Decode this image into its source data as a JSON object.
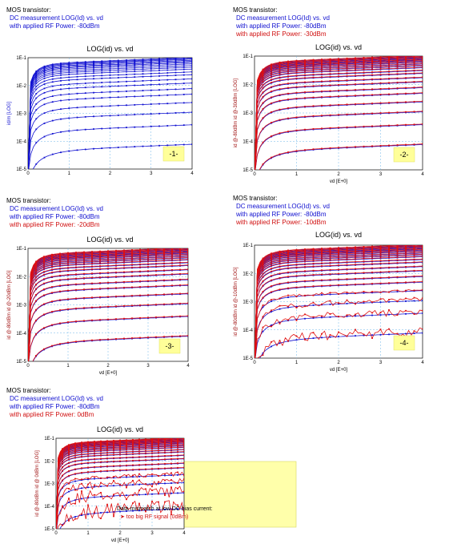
{
  "colors": {
    "blue": "#1010d0",
    "red": "#e01010",
    "grid": "#6fb6e8",
    "tag": "#ffff99",
    "highlight": "#ffffaa"
  },
  "chart_data": [
    {
      "type": "line",
      "id": "p1",
      "header": [
        "MOS transistor:",
        "DC measurement  LOG(Id) vs. vd",
        "with applied RF Power:    -80dBm"
      ],
      "header_colors": [
        "t",
        "b",
        "b"
      ],
      "title": "LOG(id) vs. vd",
      "xlabel": "",
      "ylabel": "id/m   [LOG]",
      "yticks": [
        "1E-1",
        "1E-2",
        "1E-3",
        "1E-4",
        "1E-5"
      ],
      "xticks": [
        "0",
        "1",
        "2",
        "3",
        "4"
      ],
      "xlim": [
        0,
        4
      ],
      "ylim_log10": [
        -5,
        -1
      ],
      "tag": "-1-",
      "series": [
        {
          "color": "blue",
          "noise": 0
        }
      ]
    },
    {
      "type": "line",
      "id": "p2",
      "header": [
        "MOS transistor:",
        "DC measurement  LOG(Id) vs. vd",
        "with applied RF Power:    -80dBm",
        "with applied RF Power:    -30dBm"
      ],
      "header_colors": [
        "t",
        "b",
        "b",
        "r"
      ],
      "title": "LOG(id) vs. vd",
      "xlabel": "vd  [E+0]",
      "ylabel": "id @-80dBm  id @-30dBm  [LOG]",
      "yticks": [
        "1E-1",
        "1E-2",
        "1E-3",
        "1E-4",
        "1E-5"
      ],
      "xticks": [
        "0",
        "1",
        "2",
        "3",
        "4"
      ],
      "xlim": [
        0,
        4
      ],
      "ylim_log10": [
        -5,
        -1
      ],
      "tag": "-2-",
      "series": [
        {
          "color": "blue",
          "noise": 0
        },
        {
          "color": "red",
          "noise": 0
        }
      ]
    },
    {
      "type": "line",
      "id": "p3",
      "header": [
        "MOS transistor:",
        "DC measurement  LOG(Id) vs. vd",
        "with applied RF Power:    -80dBm",
        "with applied RF Power:    -20dBm"
      ],
      "header_colors": [
        "t",
        "b",
        "b",
        "r"
      ],
      "title": "LOG(id) vs. vd",
      "xlabel": "vd  [E+0]",
      "ylabel": "id @-80dBm  id @-20dBm  [LOG]",
      "yticks": [
        "1E-1",
        "1E-2",
        "1E-3",
        "1E-4",
        "1E-5"
      ],
      "xticks": [
        "0",
        "1",
        "2",
        "3",
        "4"
      ],
      "xlim": [
        0,
        4
      ],
      "ylim_log10": [
        -5,
        -1
      ],
      "tag": "-3-",
      "series": [
        {
          "color": "blue",
          "noise": 0
        },
        {
          "color": "red",
          "noise": 0
        }
      ]
    },
    {
      "type": "line",
      "id": "p4",
      "header": [
        "MOS transistor:",
        "DC measurement  LOG(Id) vs. vd",
        "with applied RF Power:    -80dBm",
        "with applied RF Power:    -10dBm"
      ],
      "header_colors": [
        "t",
        "b",
        "b",
        "r"
      ],
      "title": "LOG(id) vs. vd",
      "xlabel": "vd  [E+0]",
      "ylabel": "id @-80dBm  id @-10dBm  [LOG]",
      "yticks": [
        "1E-1",
        "1E-2",
        "1E-3",
        "1E-4",
        "1E-5"
      ],
      "xticks": [
        "0",
        "1",
        "2",
        "3",
        "4"
      ],
      "xlim": [
        0,
        4
      ],
      "ylim_log10": [
        -5,
        -1
      ],
      "tag": "-4-",
      "series": [
        {
          "color": "blue",
          "noise": 0
        },
        {
          "color": "red",
          "noise": 1
        }
      ]
    },
    {
      "type": "line",
      "id": "p5",
      "header": [
        "MOS transistor:",
        "DC measurement  LOG(Id) vs. vd",
        "with applied RF Power:    -80dBm",
        "with applied RF Power:         0dBm"
      ],
      "header_colors": [
        "t",
        "b",
        "b",
        "r"
      ],
      "title": "LOG(id) vs. vd",
      "xlabel": "vd  [E+0]",
      "ylabel": "id @-80dBm  id @ 0dBm  [LOG]",
      "yticks": [
        "1E-1",
        "1E-2",
        "1E-3",
        "1E-4",
        "1E-5"
      ],
      "xticks": [
        "0",
        "1",
        "2",
        "3",
        "4"
      ],
      "xlim": [
        0,
        4
      ],
      "ylim_log10": [
        -5,
        -1
      ],
      "tag": "",
      "note": [
        "Data mismatch at low DC bias current:",
        "➤  too big RF signal (0dBm)"
      ],
      "series": [
        {
          "color": "blue",
          "noise": 0
        },
        {
          "color": "red",
          "noise": 2
        }
      ]
    }
  ]
}
